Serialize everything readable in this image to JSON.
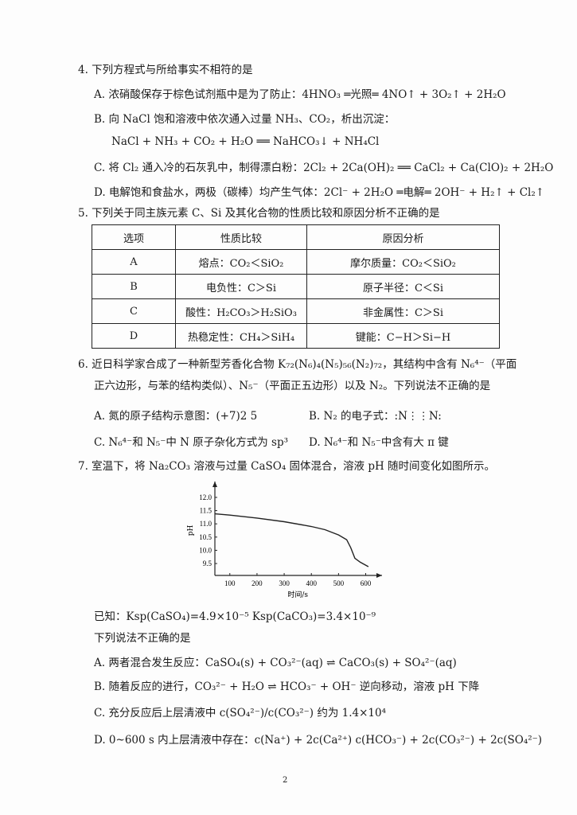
{
  "q4": {
    "stem": "4. 下列方程式与所给事实不相符的是",
    "options": [
      "A. 浓硝酸保存于棕色试剂瓶中是为了防止：4HNO₃ ═光照═ 4NO↑ + 3O₂↑ + 2H₂O",
      "B. 向 NaCl 饱和溶液中依次通入过量 NH₃、CO₂，析出沉淀：",
      "NaCl + NH₃ + CO₂ + H₂O ══ NaHCO₃↓ + NH₄Cl",
      "C. 将 Cl₂ 通入冷的石灰乳中，制得漂白粉：2Cl₂ + 2Ca(OH)₂ ══ CaCl₂ + Ca(ClO)₂ + 2H₂O",
      "D. 电解饱和食盐水，两极（碳棒）均产生气体：2Cl⁻ + 2H₂O ═电解═ 2OH⁻ + H₂↑ + Cl₂↑"
    ]
  },
  "q5": {
    "stem": "5. 下列关于同主族元素 C、Si 及其化合物的性质比较和原因分析不正确的是",
    "headers": [
      "选项",
      "性质比较",
      "原因分析"
    ],
    "rows": [
      [
        "A",
        "熔点：CO₂＜SiO₂",
        "摩尔质量：CO₂＜SiO₂"
      ],
      [
        "B",
        "电负性：C＞Si",
        "原子半径：C＜Si"
      ],
      [
        "C",
        "酸性：H₂CO₃＞H₂SiO₃",
        "非金属性：C＞Si"
      ],
      [
        "D",
        "热稳定性：CH₄＞SiH₄",
        "键能：C−H＞Si−H"
      ]
    ]
  },
  "q6": {
    "stem1": "6. 近日科学家合成了一种新型芳香化合物 K₇₂(N₆)₄(N₅)₅₆(N₂)₇₂，其结构中含有 N₆⁴⁻（平面",
    "stem2": "正六边形，与苯的结构类似）、N₅⁻（平面正五边形）以及 N₂。下列说法不正确的是",
    "optA": "A. 氮的原子结构示意图：(+7)2 5",
    "optB": "B. N₂ 的电子式：:N⋮⋮N:",
    "optC": "C. N₆⁴⁻和 N₅⁻中 N 原子杂化方式为 sp³",
    "optD": "D. N₆⁴⁻和 N₅⁻中含有大 π 键"
  },
  "q7": {
    "stem": "7. 室温下，将 Na₂CO₃ 溶液与过量 CaSO₄ 固体混合，溶液 pH 随时间变化如图所示。",
    "known": "已知：Ksp(CaSO₄)=4.9×10⁻⁵    Ksp(CaCO₃)=3.4×10⁻⁹",
    "ask": "下列说法不正确的是",
    "options": [
      "A. 两者混合发生反应：CaSO₄(s) + CO₃²⁻(aq) ⇌ CaCO₃(s) + SO₄²⁻(aq)",
      "B. 随着反应的进行，CO₃²⁻ + H₂O ⇌ HCO₃⁻ + OH⁻ 逆向移动，溶液 pH 下降",
      "C. 充分反应后上层清液中 c(SO₄²⁻)/c(CO₃²⁻) 约为 1.4×10⁴",
      "D. 0~600 s 内上层清液中存在：c(Na⁺) + 2c(Ca²⁺)    c(HCO₃⁻) + 2c(CO₃²⁻) + 2c(SO₄²⁻)"
    ]
  },
  "chart_data": {
    "type": "line",
    "xlabel": "时间/s",
    "ylabel": "pH",
    "xticks": [
      100,
      200,
      300,
      400,
      500,
      600
    ],
    "yticks": [
      "9.5",
      "10.0",
      "10.5",
      "11.0",
      "11.5",
      "12.0"
    ],
    "xlim": [
      45,
      660
    ],
    "ylim": [
      9.05,
      12.6
    ],
    "x": [
      45,
      100,
      200,
      300,
      400,
      450,
      500,
      530,
      545,
      560,
      580,
      610
    ],
    "y": [
      11.38,
      11.33,
      11.22,
      11.08,
      10.9,
      10.78,
      10.58,
      10.4,
      10.1,
      9.7,
      9.55,
      9.38
    ]
  },
  "page_number": "2"
}
